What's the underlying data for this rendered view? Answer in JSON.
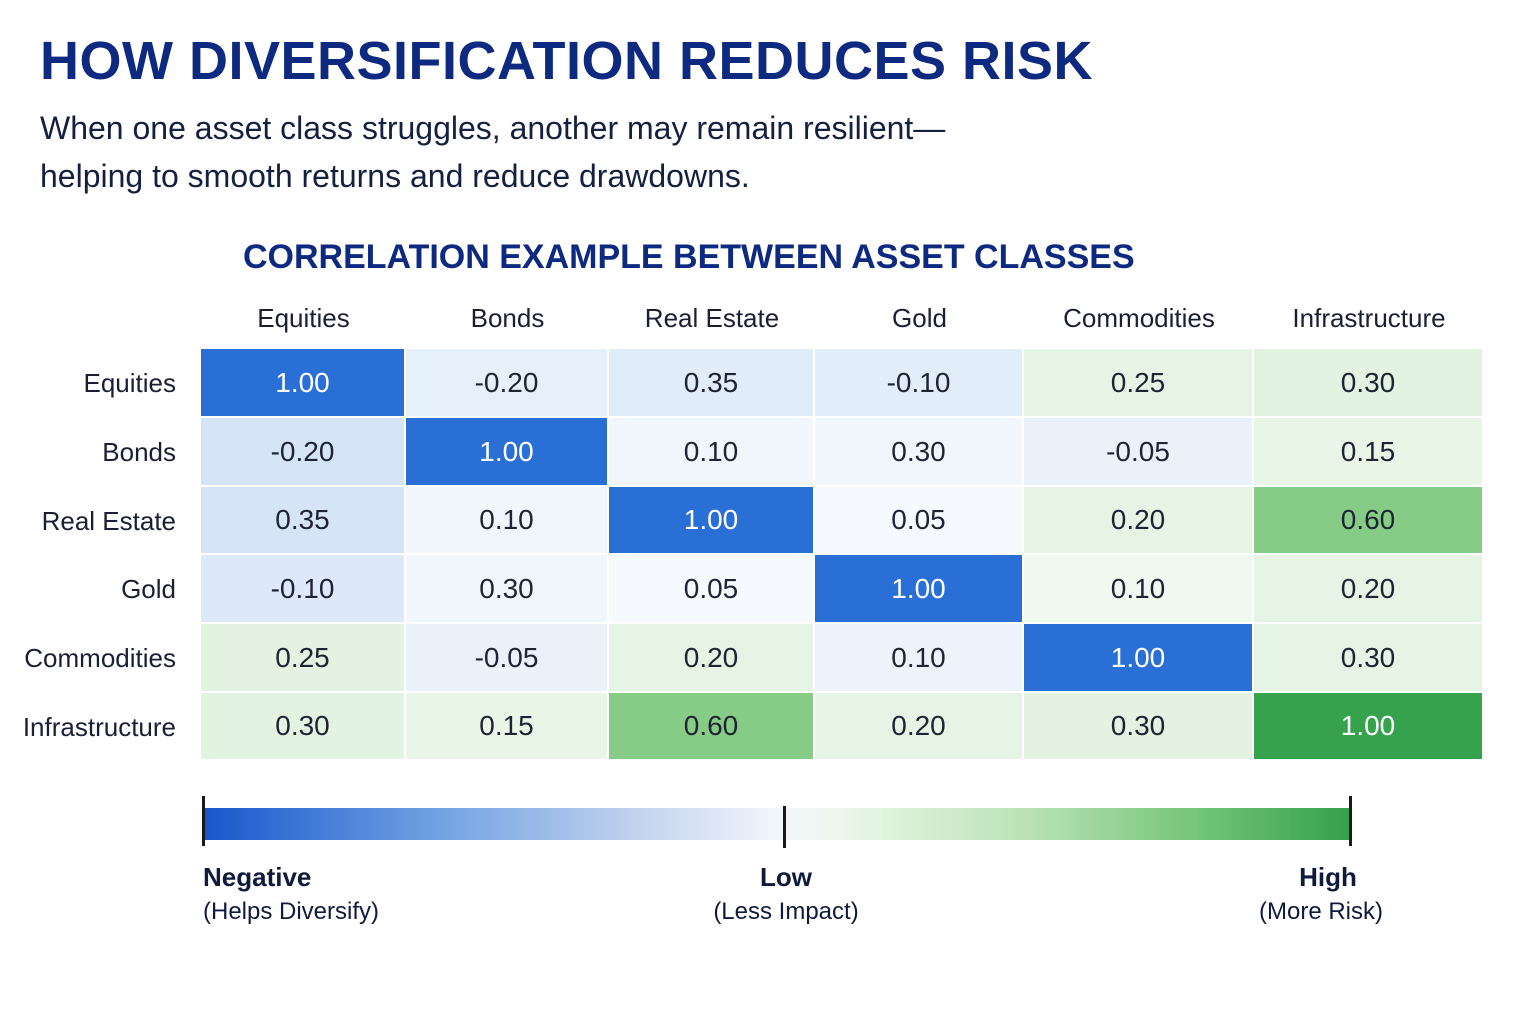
{
  "header": {
    "title": "HOW DIVERSIFICATION REDUCES RISK",
    "subtitle_line1": "When one asset class struggles, another may remain resilient—",
    "subtitle_line2": "helping to smooth returns and reduce drawdowns."
  },
  "chart_data": {
    "type": "heatmap",
    "title": "CORRELATION EXAMPLE BETWEEN ASSET CLASSES",
    "columns": [
      "Equities",
      "Bonds",
      "Real Estate",
      "Gold",
      "Commodities",
      "Infrastructure"
    ],
    "rows": [
      "Equities",
      "Bonds",
      "Real Estate",
      "Gold",
      "Commodities",
      "Infrastructure"
    ],
    "values": [
      [
        1.0,
        -0.2,
        0.35,
        -0.1,
        0.25,
        0.3
      ],
      [
        -0.2,
        1.0,
        0.1,
        0.3,
        -0.05,
        0.15
      ],
      [
        0.35,
        0.1,
        1.0,
        0.05,
        0.2,
        0.6
      ],
      [
        -0.1,
        0.3,
        0.05,
        1.0,
        0.1,
        0.2
      ],
      [
        0.25,
        -0.05,
        0.2,
        0.1,
        1.0,
        0.3
      ],
      [
        0.3,
        0.15,
        0.6,
        0.2,
        0.3,
        1.0
      ]
    ],
    "value_labels": [
      [
        "1.00",
        "-0.20",
        "0.35",
        "-0.10",
        "0.25",
        "0.30"
      ],
      [
        "-0.20",
        "1.00",
        "0.10",
        "0.30",
        "-0.05",
        "0.15"
      ],
      [
        "0.35",
        "0.10",
        "1.00",
        "0.05",
        "0.20",
        "0.60"
      ],
      [
        "-0.10",
        "0.30",
        "0.05",
        "1.00",
        "0.10",
        "0.20"
      ],
      [
        "0.25",
        "-0.05",
        "0.20",
        "0.10",
        "1.00",
        "0.30"
      ],
      [
        "0.30",
        "0.15",
        "0.60",
        "0.20",
        "0.30",
        "1.00"
      ]
    ],
    "cell_colors": [
      [
        "#2a6fd6",
        "#e6f0fb",
        "#e1ecf9",
        "#e2edfa",
        "#e6f4e5",
        "#e3f3e2"
      ],
      [
        "#d6e4f7",
        "#2a6fd6",
        "#f1f6fd",
        "#f1f6fd",
        "#eaf1fb",
        "#e8f5e7"
      ],
      [
        "#d6e4f7",
        "#f1f6fd",
        "#2a6fd6",
        "#f6f9fe",
        "#e6f4e5",
        "#86cc86"
      ],
      [
        "#dde9f8",
        "#f1f6fd",
        "#f6f9fe",
        "#2a6fd6",
        "#f1f8f0",
        "#e6f4e5"
      ],
      [
        "#e3f2e1",
        "#eaf1fb",
        "#e6f4e5",
        "#eef3fb",
        "#2a6fd6",
        "#e6f4e5"
      ],
      [
        "#e3f3e2",
        "#e8f5e7",
        "#86cc86",
        "#e6f4e5",
        "#e3f2e1",
        "#37a24e"
      ]
    ],
    "legend": {
      "negative_label": "Negative",
      "negative_sub": "(Helps Diversify)",
      "low_label": "Low",
      "low_sub": "(Less Impact)",
      "high_label": "High",
      "high_sub": "(More Risk)",
      "colors": [
        "#1757cc",
        "#f2f6fd",
        "#34a04a"
      ]
    }
  }
}
